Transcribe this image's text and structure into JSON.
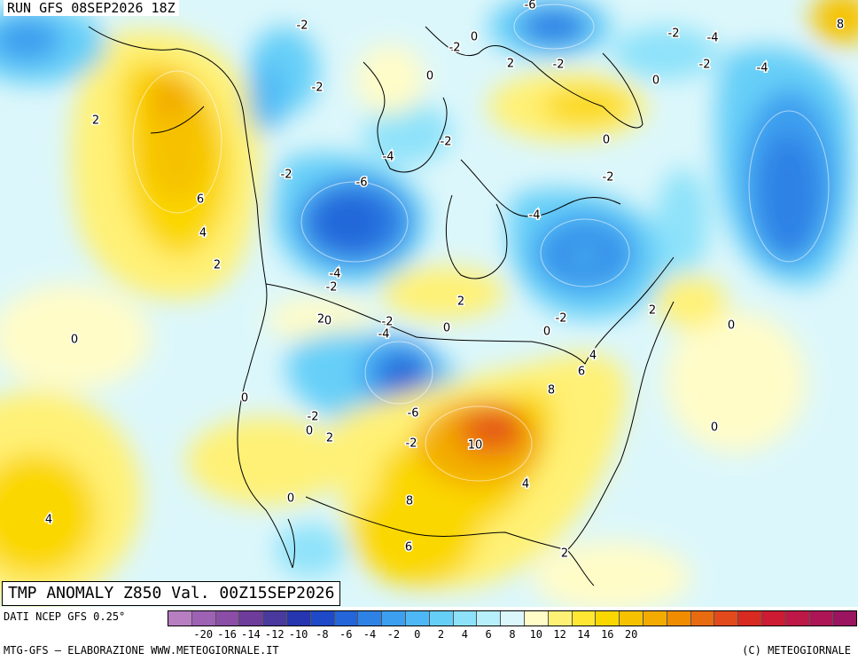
{
  "header": {
    "run_label": "RUN GFS 08SEP2026 18Z"
  },
  "title": {
    "text": "TMP ANOMALY Z850 Val. 00Z15SEP2026"
  },
  "legend": {
    "source_label": "DATI NCEP GFS 0.25°",
    "credit_left": "MTG-GFS – ELABORAZIONE WWW.METEOGIORNALE.IT",
    "credit_right": "(C) METEOGIORNALE",
    "colors": [
      "#b77ec2",
      "#9d62b3",
      "#8a4ea6",
      "#6e3c9a",
      "#4a3a9e",
      "#2636b0",
      "#1e49c8",
      "#2466d9",
      "#2f82e5",
      "#3c9fef",
      "#4db8f5",
      "#66cff8",
      "#8de2fa",
      "#b7effa",
      "#dcf7fb",
      "#fffcc8",
      "#fff176",
      "#ffe733",
      "#fbd700",
      "#f6c200",
      "#f3ab00",
      "#f08c00",
      "#e96b10",
      "#e24a1c",
      "#d92a22",
      "#cc1b32",
      "#be1848",
      "#ad1656",
      "#9a1460"
    ],
    "tick_labels": [
      "-20",
      "-16",
      "-14",
      "-12",
      "-10",
      "-8",
      "-6",
      "-4",
      "-2",
      "0",
      "2",
      "4",
      "6",
      "8",
      "10",
      "12",
      "14",
      "16",
      "20"
    ]
  },
  "map": {
    "contour_labels": [
      {
        "text": "-2"
      },
      {
        "text": "-6"
      },
      {
        "text": "8"
      },
      {
        "text": "0"
      },
      {
        "text": "-2"
      },
      {
        "text": "-2"
      },
      {
        "text": "-4"
      },
      {
        "text": "2"
      },
      {
        "text": "-2"
      },
      {
        "text": "-2"
      },
      {
        "text": "-4"
      },
      {
        "text": "0"
      },
      {
        "text": "2"
      },
      {
        "text": "-2"
      },
      {
        "text": "0"
      },
      {
        "text": "-2"
      },
      {
        "text": "-4"
      },
      {
        "text": "0"
      },
      {
        "text": "-6"
      },
      {
        "text": "-2"
      },
      {
        "text": "6"
      },
      {
        "text": "4"
      },
      {
        "text": "2"
      },
      {
        "text": "-4"
      },
      {
        "text": "-4"
      },
      {
        "text": "-2"
      },
      {
        "text": "0"
      },
      {
        "text": "2"
      },
      {
        "text": "-2"
      },
      {
        "text": "2"
      },
      {
        "text": "0"
      },
      {
        "text": "2"
      },
      {
        "text": "-2"
      },
      {
        "text": "-4"
      },
      {
        "text": "0"
      },
      {
        "text": "-2"
      },
      {
        "text": "0"
      },
      {
        "text": "0"
      },
      {
        "text": "4"
      },
      {
        "text": "6"
      },
      {
        "text": "8"
      },
      {
        "text": "0"
      },
      {
        "text": "-6"
      },
      {
        "text": "-2"
      },
      {
        "text": "0"
      },
      {
        "text": "2"
      },
      {
        "text": "10"
      },
      {
        "text": "0"
      },
      {
        "text": "-2"
      },
      {
        "text": "4"
      },
      {
        "text": "0"
      },
      {
        "text": "8"
      },
      {
        "text": "4"
      },
      {
        "text": "6"
      },
      {
        "text": "2"
      }
    ]
  }
}
